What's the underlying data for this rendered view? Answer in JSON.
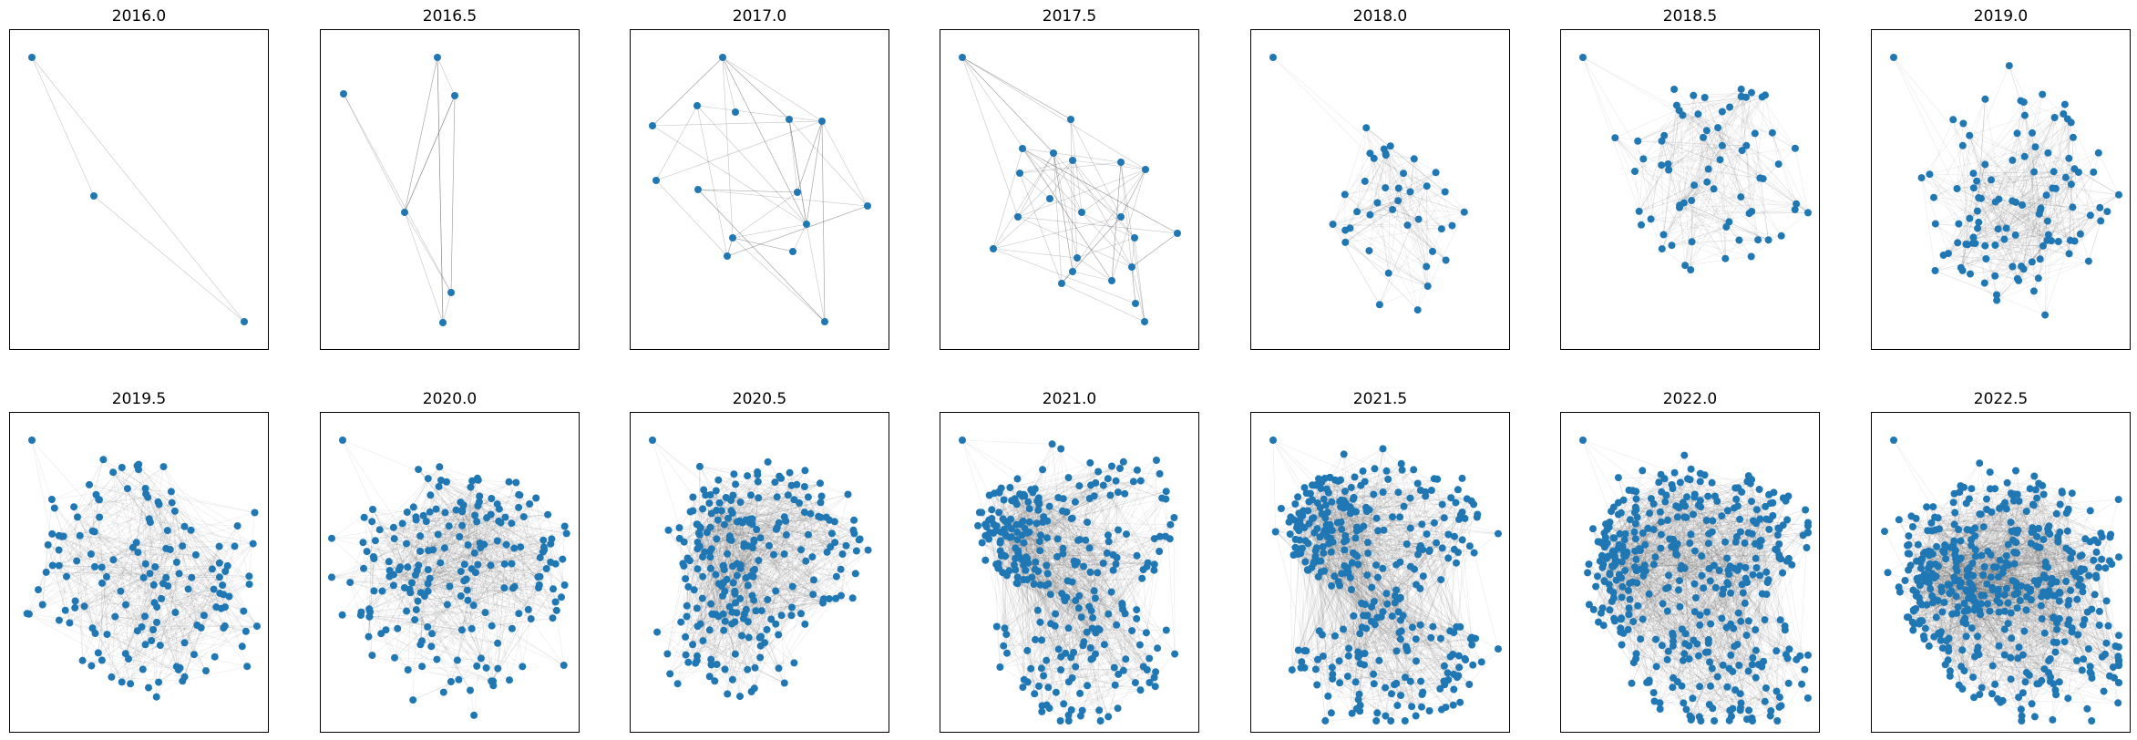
{
  "figure": {
    "node_color": "#1f77b4",
    "edge_color": "#555555",
    "frame_color": "#000000"
  },
  "panels": [
    {
      "title": "2016.0",
      "node_count": 3
    },
    {
      "title": "2016.5",
      "node_count": 6
    },
    {
      "title": "2017.0",
      "node_count": 15
    },
    {
      "title": "2017.5",
      "node_count": 22
    },
    {
      "title": "2018.0",
      "node_count": 40
    },
    {
      "title": "2018.5",
      "node_count": 70
    },
    {
      "title": "2019.0",
      "node_count": 110
    },
    {
      "title": "2019.5",
      "node_count": 150
    },
    {
      "title": "2020.0",
      "node_count": 200
    },
    {
      "title": "2020.5",
      "node_count": 250
    },
    {
      "title": "2021.0",
      "node_count": 300
    },
    {
      "title": "2021.5",
      "node_count": 360
    },
    {
      "title": "2022.0",
      "node_count": 420
    },
    {
      "title": "2022.5",
      "node_count": 480
    }
  ]
}
